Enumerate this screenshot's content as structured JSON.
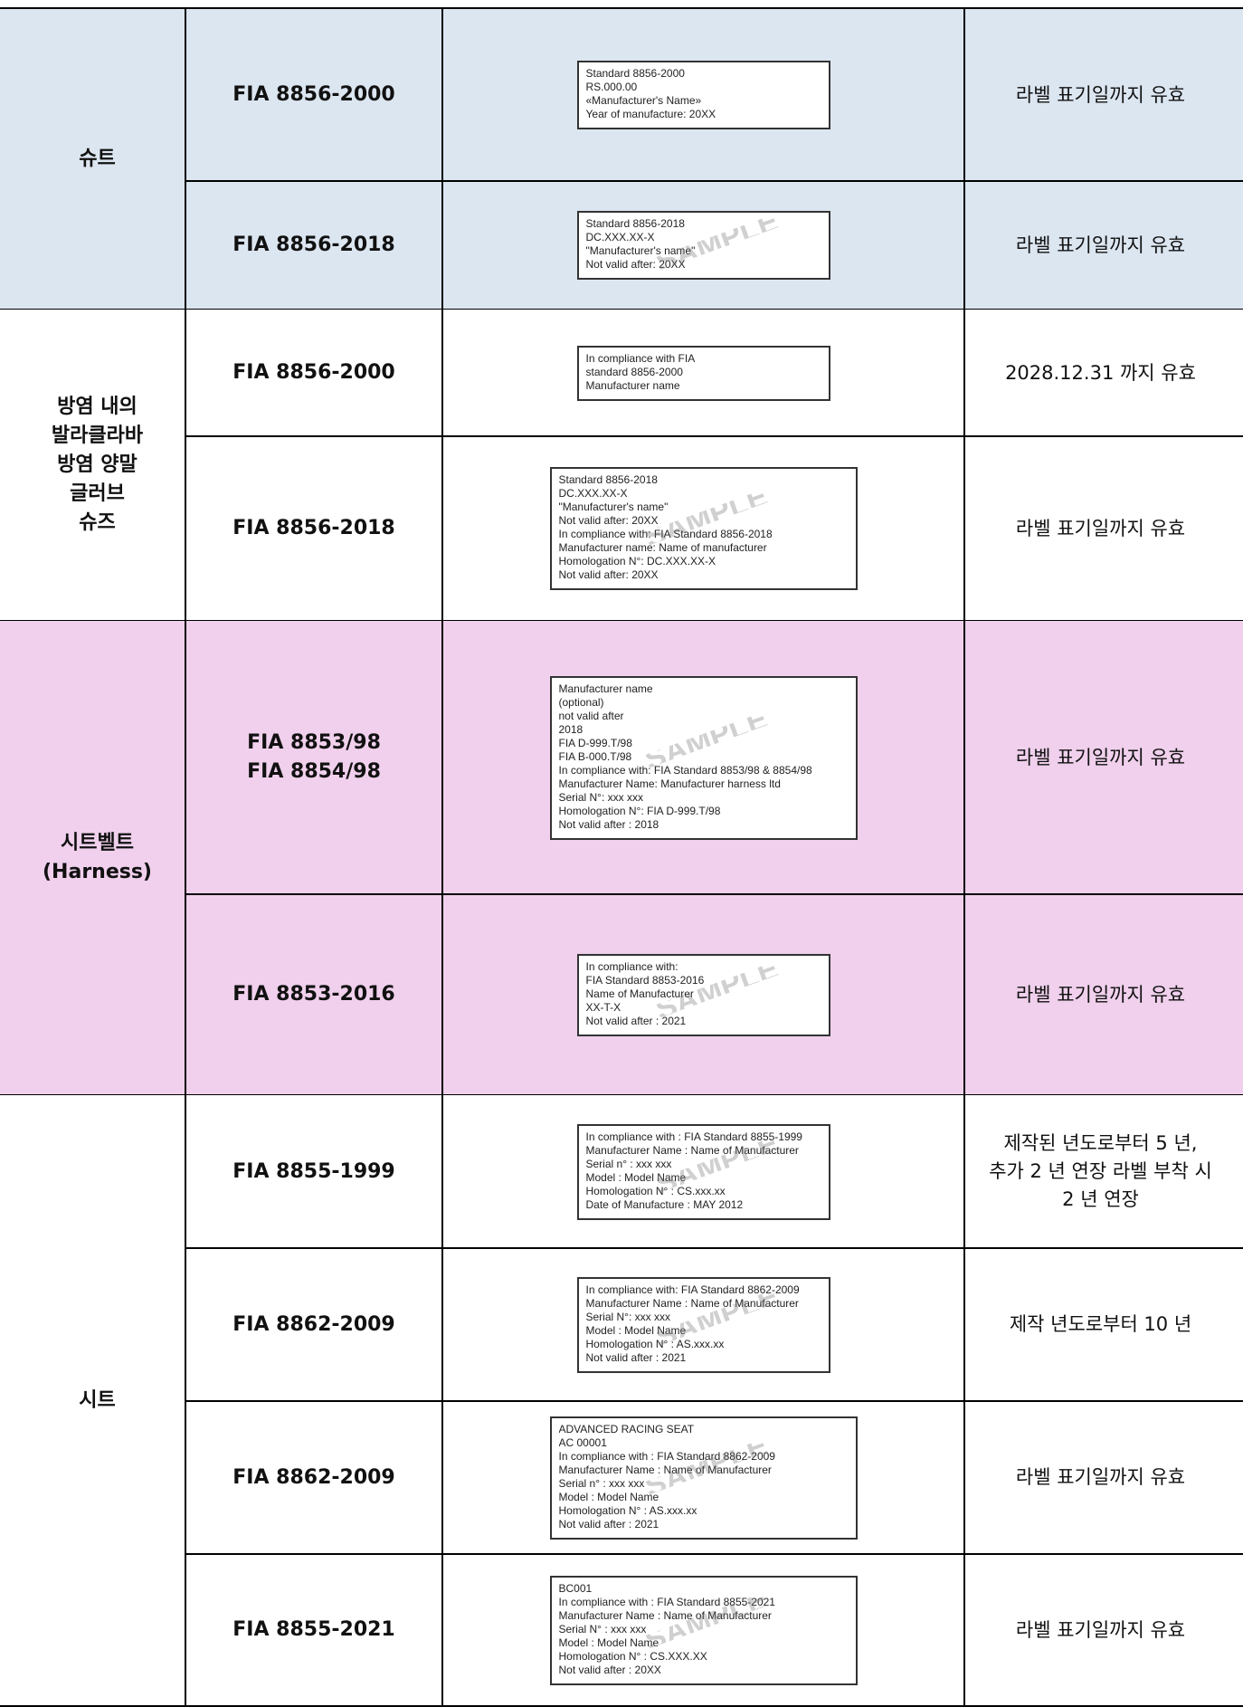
{
  "groups": [
    {
      "name": "슈트",
      "rows": [
        {
          "standard": "FIA 8856-2000",
          "label": [
            "Standard 8856-2000",
            "RS.000.00",
            "«Manufacturer's Name»",
            "Year of manufacture: 20XX"
          ],
          "validity": "라벨 표기일까지 유효"
        },
        {
          "standard": "FIA 8856-2018",
          "label": [
            "Standard 8856-2018",
            "DC.XXX.XX-X",
            "\"Manufacturer's name\"",
            "Not valid after: 20XX"
          ],
          "watermark": "SAMPLE",
          "validity": "라벨 표기일까지 유효"
        }
      ]
    },
    {
      "name": "방염 내의\n발라클라바\n방염 양말\n글러브\n슈즈",
      "rows": [
        {
          "standard": "FIA 8856-2000",
          "label": [
            "In compliance with FIA",
            "standard 8856-2000",
            "Manufacturer name"
          ],
          "validity": "2028.12.31 까지 유효"
        },
        {
          "standard": "FIA 8856-2018",
          "label": [
            "Standard 8856-2018",
            "DC.XXX.XX-X",
            "\"Manufacturer's name\"",
            "Not valid after: 20XX",
            "In compliance with: FIA Standard 8856-2018",
            "Manufacturer name: Name of manufacturer",
            "Homologation N°: DC.XXX.XX-X",
            "Not valid after: 20XX"
          ],
          "watermark": "SAMPLE",
          "validity": "라벨 표기일까지 유효"
        }
      ]
    },
    {
      "name": "시트벨트\n(Harness)",
      "rows": [
        {
          "standard": "FIA 8853/98\nFIA 8854/98",
          "label": [
            "Manufacturer name",
            "(optional)",
            "not valid after",
            "2018",
            "FIA D-999.T/98",
            "FIA B-000.T/98",
            "In compliance with: FIA Standard 8853/98 & 8854/98",
            "Manufacturer Name: Manufacturer harness ltd",
            "Serial N°: xxx xxx",
            "Homologation N°: FIA D-999.T/98",
            "Not valid after : 2018"
          ],
          "watermark": "SAMPLE",
          "validity": "라벨 표기일까지 유효"
        },
        {
          "standard": "FIA 8853-2016",
          "label": [
            "In compliance with:",
            "FIA Standard 8853-2016",
            "Name of Manufacturer",
            "XX-T-X",
            "Not valid after : 2021"
          ],
          "watermark": "SAMPLE",
          "validity": "라벨 표기일까지 유효"
        }
      ]
    },
    {
      "name": "시트",
      "rows": [
        {
          "standard": "FIA 8855-1999",
          "label": [
            "In compliance with : FIA Standard 8855-1999",
            "Manufacturer Name : Name of Manufacturer",
            "Serial n° : xxx xxx",
            "Model : Model Name",
            "Homologation N° : CS.xxx.xx",
            "Date of Manufacture : MAY 2012"
          ],
          "watermark": "SAMPLE",
          "validity": "제작된 년도로부터 5 년,\n추가 2 년 연장 라벨 부착 시\n2 년 연장"
        },
        {
          "standard": "FIA 8862-2009",
          "label": [
            "In compliance with: FIA Standard 8862-2009",
            "Manufacturer Name : Name of Manufacturer",
            "Serial N°: xxx xxx",
            "Model : Model Name",
            "Homologation N° : AS.xxx.xx",
            "Not valid after : 2021"
          ],
          "watermark": "SAMPLE",
          "validity": "제작 년도로부터 10 년"
        },
        {
          "standard": "FIA 8862-2009",
          "label": [
            "ADVANCED RACING SEAT",
            "AC 00001",
            "In compliance with : FIA Standard 8862-2009",
            "Manufacturer Name : Name of Manufacturer",
            "Serial n° : xxx xxx",
            "Model : Model Name",
            "Homologation N° : AS.xxx.xx",
            "Not valid after : 2021"
          ],
          "watermark": "SAMPLE",
          "validity": "라벨 표기일까지 유효"
        },
        {
          "standard": "FIA 8855-2021",
          "label": [
            "BC001",
            "In compliance with : FIA Standard 8855-2021",
            "Manufacturer Name : Name of Manufacturer",
            "Serial N° : xxx xxx",
            "Model : Model Name",
            "Homologation N° : CS.XXX.XX",
            "Not valid after : 20XX"
          ],
          "watermark": "SAMPLE",
          "validity": "라벨 표기일까지 유효"
        }
      ]
    }
  ]
}
